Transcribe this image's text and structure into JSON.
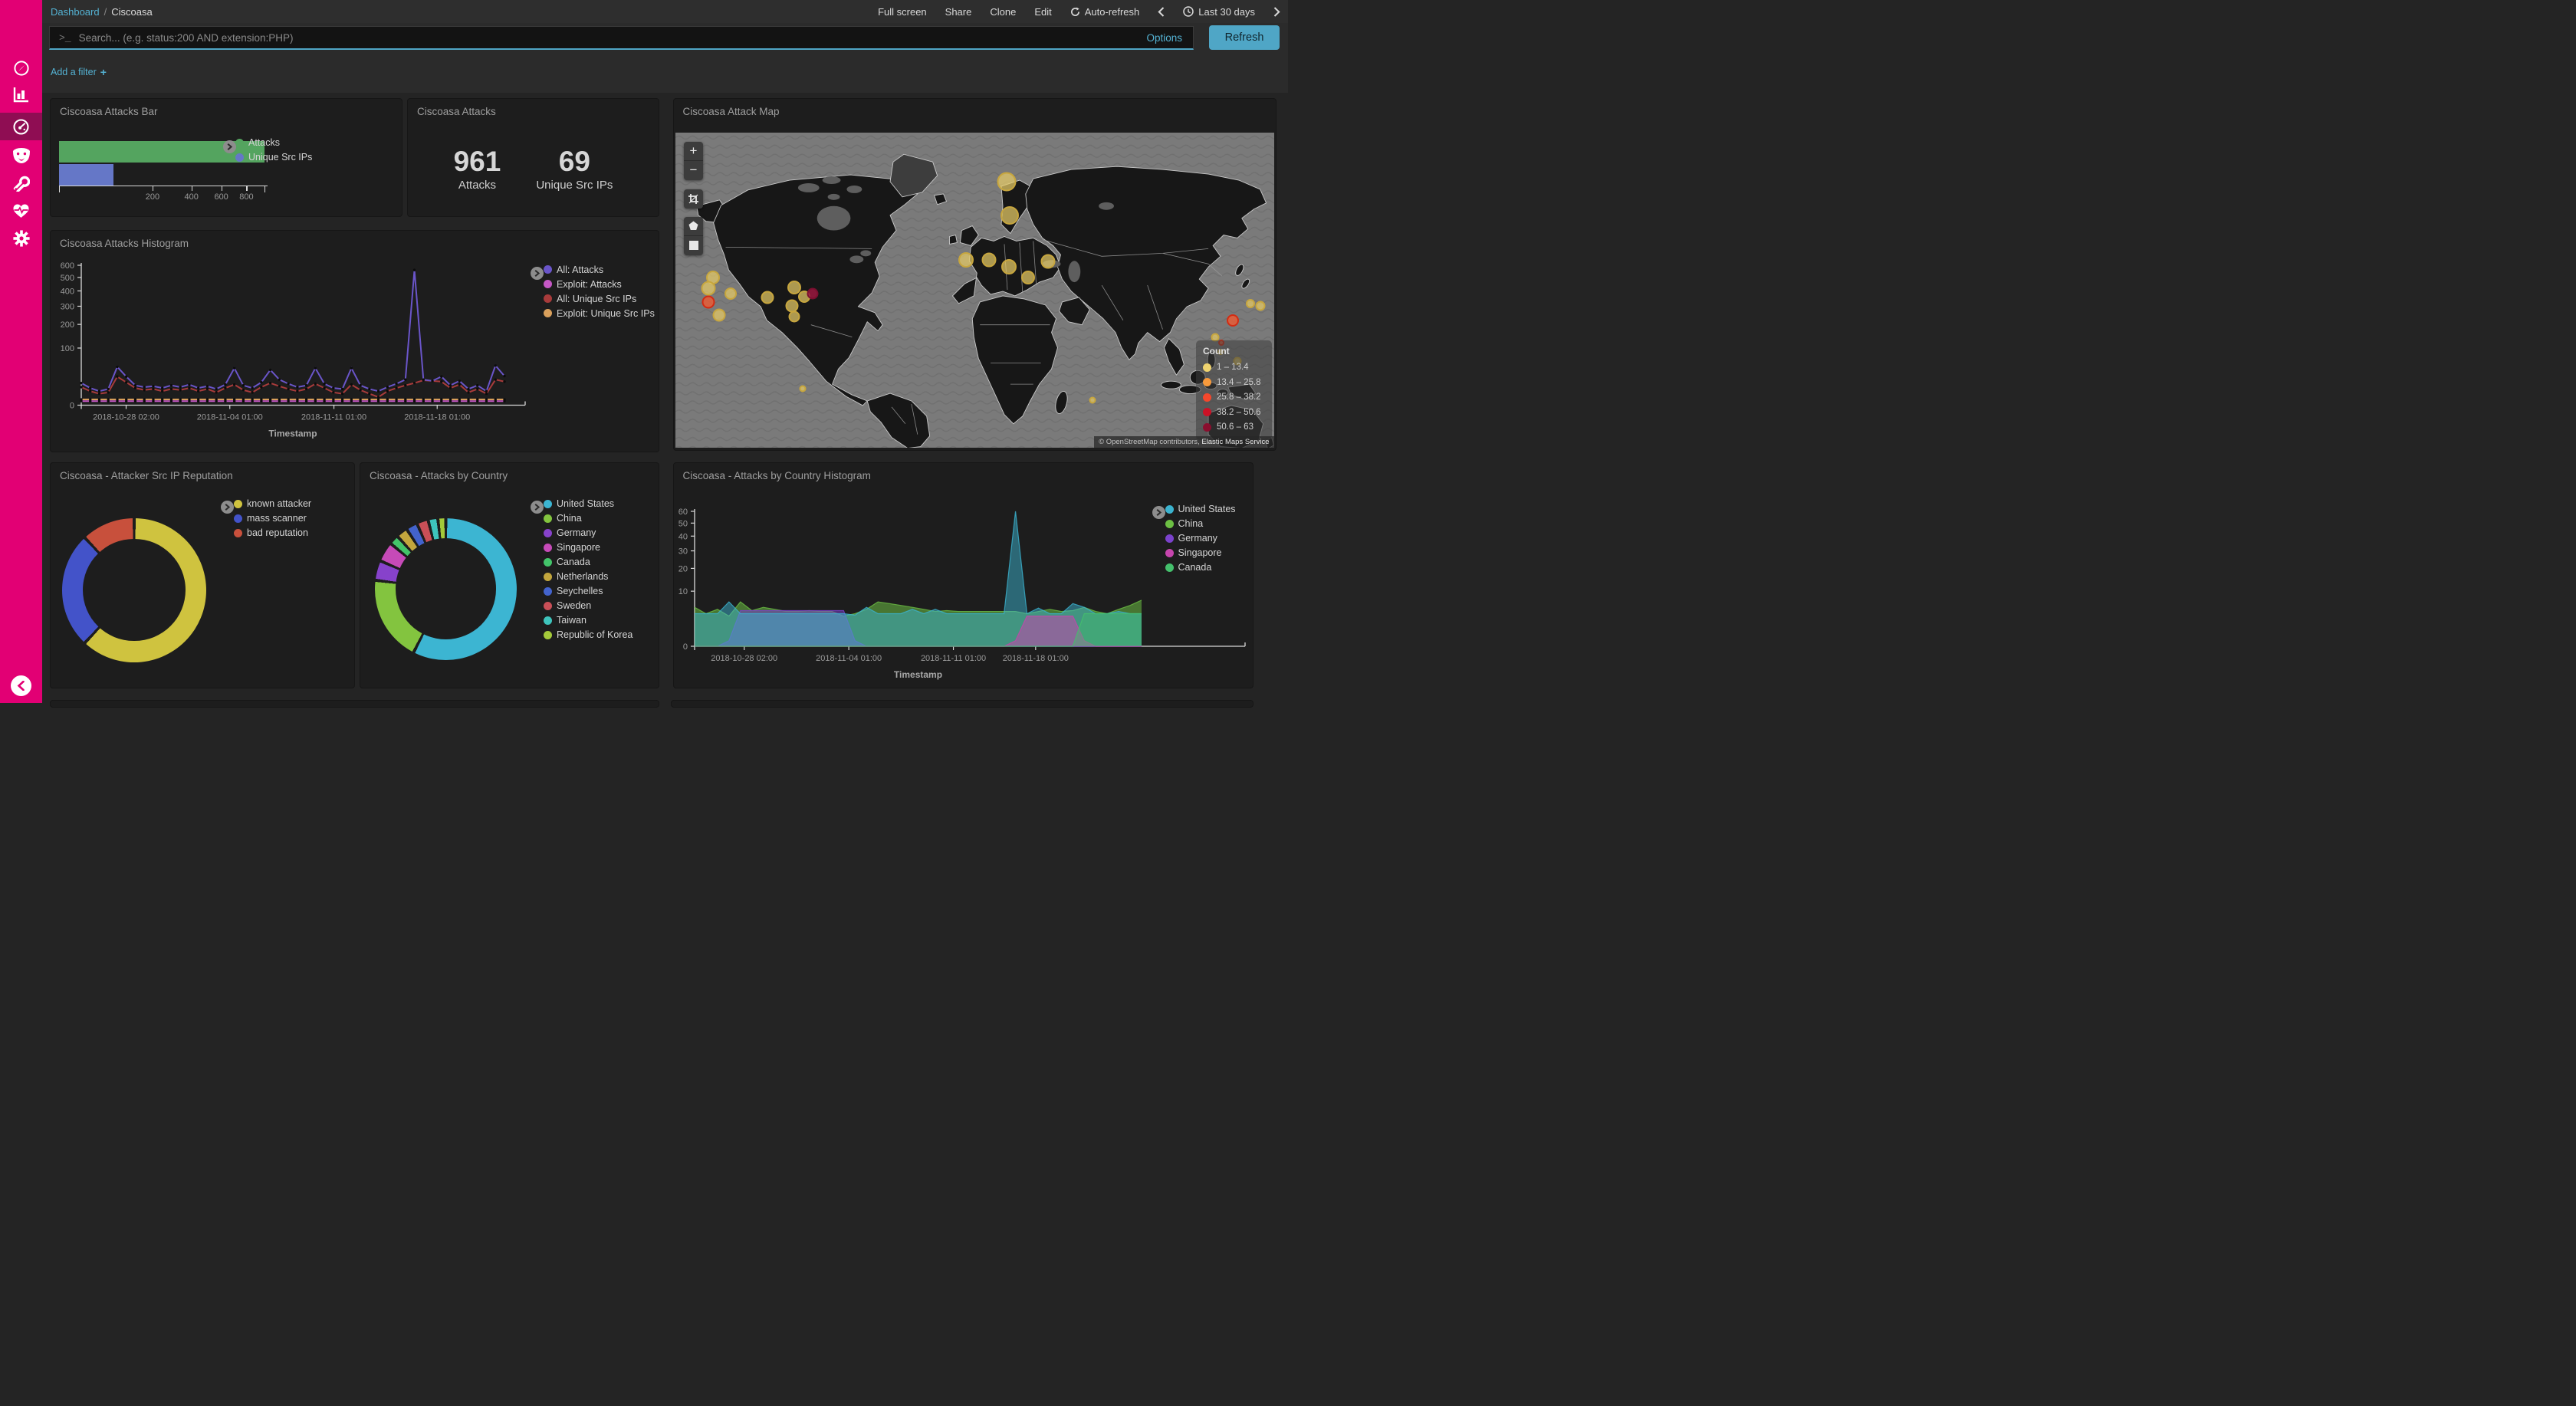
{
  "topbar": {
    "breadcrumb": {
      "link": "Dashboard",
      "separator": "/",
      "current": "Ciscoasa"
    },
    "menu": [
      "Full screen",
      "Share",
      "Clone",
      "Edit"
    ],
    "auto_refresh": "Auto-refresh",
    "time_range": "Last 30 days"
  },
  "search": {
    "prompt": ">_",
    "placeholder": "Search... (e.g. status:200 AND extension:PHP)",
    "options_label": "Options",
    "refresh_label": "Refresh",
    "add_filter_label": "Add a filter",
    "add_filter_plus": "+"
  },
  "sidebar": {
    "accent_color": "#e20074",
    "items": [
      "discover",
      "visualize",
      "dashboard",
      "timelion",
      "dev-tools",
      "monitoring",
      "management"
    ],
    "active_item": "dashboard"
  },
  "panels": {
    "attacks_bar": {
      "title": "Ciscoasa Attacks Bar",
      "chart": {
        "type": "bar",
        "orientation": "horizontal",
        "scale": "square-root",
        "ticks": [
          200,
          400,
          600,
          800
        ],
        "max": 961,
        "bars": [
          {
            "label": "Attacks",
            "value": 961,
            "color": "#54a45f"
          },
          {
            "label": "Unique Src IPs",
            "value": 69,
            "color": "#6577c7"
          }
        ]
      }
    },
    "attacks_metric": {
      "title": "Ciscoasa Attacks",
      "metrics": [
        {
          "value": "961",
          "label": "Attacks"
        },
        {
          "value": "69",
          "label": "Unique Src IPs"
        }
      ]
    },
    "attack_map": {
      "title": "Ciscoasa Attack Map",
      "legend_title": "Count",
      "legend": [
        {
          "label": "1 – 13.4",
          "color": "#efd36f"
        },
        {
          "label": "13.4 – 25.8",
          "color": "#f79a3c"
        },
        {
          "label": "25.8 – 38.2",
          "color": "#f4472c"
        },
        {
          "label": "38.2 – 50.6",
          "color": "#cb1226"
        },
        {
          "label": "50.6 – 63",
          "color": "#8a0e2e"
        }
      ],
      "attribution_prefix": "© OpenStreetMap contributors,",
      "attribution_suffix": " Elastic Maps Service",
      "bubbles": [
        {
          "x": 6.3,
          "y": 46,
          "d": 18,
          "c": "y"
        },
        {
          "x": 5.5,
          "y": 49.6,
          "d": 19,
          "c": "y"
        },
        {
          "x": 9.2,
          "y": 51.1,
          "d": 16,
          "c": "y"
        },
        {
          "x": 5.5,
          "y": 54,
          "d": 17,
          "c": "o"
        },
        {
          "x": 7.3,
          "y": 58.1,
          "d": 17,
          "c": "y"
        },
        {
          "x": 15.4,
          "y": 52.5,
          "d": 17,
          "c": "y"
        },
        {
          "x": 19.9,
          "y": 49.3,
          "d": 18,
          "c": "y"
        },
        {
          "x": 21.5,
          "y": 52.3,
          "d": 16,
          "c": "y"
        },
        {
          "x": 19.5,
          "y": 55,
          "d": 17,
          "c": "y"
        },
        {
          "x": 19.8,
          "y": 58.4,
          "d": 15,
          "c": "y"
        },
        {
          "x": 22.9,
          "y": 51.1,
          "d": 15,
          "c": "r"
        },
        {
          "x": 21.3,
          "y": 81.5,
          "d": 9,
          "c": "y"
        },
        {
          "x": 55.3,
          "y": 15.7,
          "d": 25,
          "c": "y"
        },
        {
          "x": 55.8,
          "y": 26.4,
          "d": 24,
          "c": "y"
        },
        {
          "x": 48.6,
          "y": 40.6,
          "d": 20,
          "c": "y"
        },
        {
          "x": 52.4,
          "y": 40.4,
          "d": 19,
          "c": "y"
        },
        {
          "x": 55.7,
          "y": 42.8,
          "d": 20,
          "c": "y"
        },
        {
          "x": 59,
          "y": 46,
          "d": 18,
          "c": "y"
        },
        {
          "x": 62.3,
          "y": 41,
          "d": 19,
          "c": "y"
        },
        {
          "x": 69.7,
          "y": 85.1,
          "d": 9,
          "c": "y"
        },
        {
          "x": 93.1,
          "y": 59.7,
          "d": 16,
          "c": "o"
        },
        {
          "x": 96.1,
          "y": 54.5,
          "d": 12,
          "c": "y"
        },
        {
          "x": 97.7,
          "y": 55.2,
          "d": 13,
          "c": "y"
        },
        {
          "x": 90.2,
          "y": 65.1,
          "d": 11,
          "c": "y"
        },
        {
          "x": 91.2,
          "y": 66.7,
          "d": 8,
          "c": "o"
        },
        {
          "x": 93.9,
          "y": 72.6,
          "d": 11,
          "c": "y"
        },
        {
          "x": 91.1,
          "y": 69.7,
          "d": 8,
          "c": "y"
        }
      ]
    },
    "attacks_histogram": {
      "title": "Ciscoasa Attacks Histogram",
      "xlabel": "Timestamp",
      "scale": "square-root",
      "ymax": 600,
      "yticks": [
        600,
        500,
        400,
        300,
        200,
        100,
        0
      ],
      "xticks": [
        "2018-10-28 02:00",
        "2018-11-04 01:00",
        "2018-11-11 01:00",
        "2018-11-18 01:00"
      ],
      "series": [
        {
          "label": "All: Attacks",
          "color": "#6a55c9",
          "values": [
            15,
            9,
            6,
            8,
            45,
            25,
            12,
            10,
            11,
            9,
            12,
            10,
            13,
            9,
            11,
            8,
            13,
            42,
            12,
            9,
            16,
            38,
            20,
            14,
            10,
            12,
            42,
            14,
            9,
            8,
            42,
            12,
            8,
            6,
            10,
            14,
            20,
            560,
            20,
            18,
            25,
            12,
            18,
            8,
            12,
            6,
            48,
            26
          ]
        },
        {
          "label": "Exploit: Attacks",
          "color": "#c558c5",
          "flat": 0.5,
          "count": 48
        },
        {
          "label": "All: Unique Src IPs",
          "color": "#a83b3b",
          "values": [
            10,
            6,
            4,
            5,
            25,
            16,
            9,
            7,
            8,
            6,
            8,
            7,
            9,
            6,
            8,
            5,
            9,
            13,
            7,
            5,
            10,
            15,
            11,
            8,
            6,
            8,
            14,
            9,
            5,
            4,
            13,
            7,
            4,
            2,
            6,
            9,
            12,
            15,
            19,
            18,
            17,
            9,
            13,
            5,
            8,
            4,
            20,
            17
          ]
        },
        {
          "label": "Exploit: Unique Src IPs",
          "color": "#d9a05c",
          "flat": 1,
          "count": 48
        }
      ]
    },
    "reputation_pie": {
      "title": "Ciscoasa - Attacker Src IP Reputation",
      "type": "donut",
      "slices": [
        {
          "label": "known attacker",
          "pct": 62,
          "color": "#cfc33f"
        },
        {
          "label": "mass scanner",
          "pct": 26,
          "color": "#4353c9"
        },
        {
          "label": "bad reputation",
          "pct": 12,
          "color": "#c8503c"
        }
      ]
    },
    "country_pie": {
      "title": "Ciscoasa - Attacks by Country",
      "type": "donut",
      "slices": [
        {
          "label": "United States",
          "pct": 57.5,
          "color": "#3cb5d2"
        },
        {
          "label": "China",
          "pct": 19.5,
          "color": "#83c43f"
        },
        {
          "label": "Germany",
          "pct": 4.5,
          "color": "#8742cb"
        },
        {
          "label": "Singapore",
          "pct": 4.5,
          "color": "#c64ab8"
        },
        {
          "label": "Canada",
          "pct": 2.2,
          "color": "#43c46a"
        },
        {
          "label": "Netherlands",
          "pct": 2.6,
          "color": "#c3a63d"
        },
        {
          "label": "Seychelles",
          "pct": 2.6,
          "color": "#4363cd"
        },
        {
          "label": "Sweden",
          "pct": 2.6,
          "color": "#c94f57"
        },
        {
          "label": "Taiwan",
          "pct": 2.2,
          "color": "#3ec4bc"
        },
        {
          "label": "Republic of Korea",
          "pct": 1.8,
          "color": "#a4c93a"
        }
      ]
    },
    "country_histogram": {
      "title": "Ciscoasa - Attacks by Country Histogram",
      "xlabel": "Timestamp",
      "scale": "square-root",
      "ymax": 60,
      "yticks": [
        60,
        50,
        40,
        30,
        20,
        10,
        0
      ],
      "xticks": [
        "2018-10-28 02:00",
        "2018-11-04 01:00",
        "2018-11-11 01:00",
        "2018-11-18 01:00"
      ],
      "series": [
        {
          "label": "United States",
          "color": "#3bb3cf",
          "opacity": 0.5,
          "values": [
            3.5,
            3.5,
            3.5,
            6.5,
            3.5,
            3.5,
            3.5,
            3.5,
            3.5,
            3.5,
            3.5,
            3.5,
            3.5,
            3.5,
            3.2,
            5,
            3.5,
            3.5,
            3.5,
            4.5,
            3.5,
            4.5,
            3.5,
            3.5,
            3.5,
            3.5,
            3.5,
            3.5,
            60,
            3.5,
            4.8,
            3.5,
            3.5,
            6,
            5,
            3.5,
            3.5,
            4,
            3.5,
            3.5
          ]
        },
        {
          "label": "China",
          "color": "#6cbf43",
          "opacity": 0.55,
          "values": [
            5,
            3.5,
            4.5,
            3,
            6.5,
            4.2,
            5,
            4.5,
            4,
            4,
            4.2,
            4,
            4,
            3,
            3.5,
            4.5,
            6.5,
            6,
            5.5,
            5,
            4.5,
            4,
            4.2,
            4,
            4,
            4,
            4,
            4,
            4,
            3.5,
            4,
            4.5,
            4,
            4.2,
            5,
            4,
            3.5,
            4.5,
            5.5,
            7
          ]
        },
        {
          "label": "Germany",
          "color": "#7b42cc",
          "opacity": 0.55,
          "values": [
            0,
            0,
            0,
            0.1,
            4.2,
            4.2,
            4.2,
            4.2,
            4.2,
            4.2,
            4.2,
            4.2,
            4.2,
            4.2,
            0.1,
            0,
            0,
            0,
            0,
            0,
            0,
            0,
            0,
            0,
            0,
            0,
            0,
            0,
            0,
            0,
            0,
            0,
            0,
            0,
            0,
            0,
            0,
            0,
            0,
            0
          ]
        },
        {
          "label": "Singapore",
          "color": "#c645ad",
          "opacity": 0.55,
          "values": [
            0,
            0,
            0,
            0,
            0,
            0,
            0,
            0,
            0,
            0,
            0,
            0,
            0,
            0,
            0,
            0,
            0,
            0,
            0,
            0,
            0,
            0,
            0,
            0,
            0,
            0,
            0,
            0,
            0.1,
            3,
            3,
            3,
            3,
            3,
            0.1,
            0,
            0,
            0,
            0,
            0
          ]
        },
        {
          "label": "Canada",
          "color": "#44c06c",
          "opacity": 0.4,
          "values": [
            0,
            0,
            0,
            0,
            0,
            0,
            0,
            0,
            0,
            0,
            0,
            0,
            0,
            0,
            0,
            0,
            0,
            0,
            0,
            0,
            0,
            0,
            0,
            0,
            0,
            0,
            0,
            0,
            0,
            0,
            0,
            0,
            0,
            0,
            3.5,
            3.5,
            3.5,
            3.5,
            3.5,
            3.5
          ]
        }
      ]
    }
  }
}
